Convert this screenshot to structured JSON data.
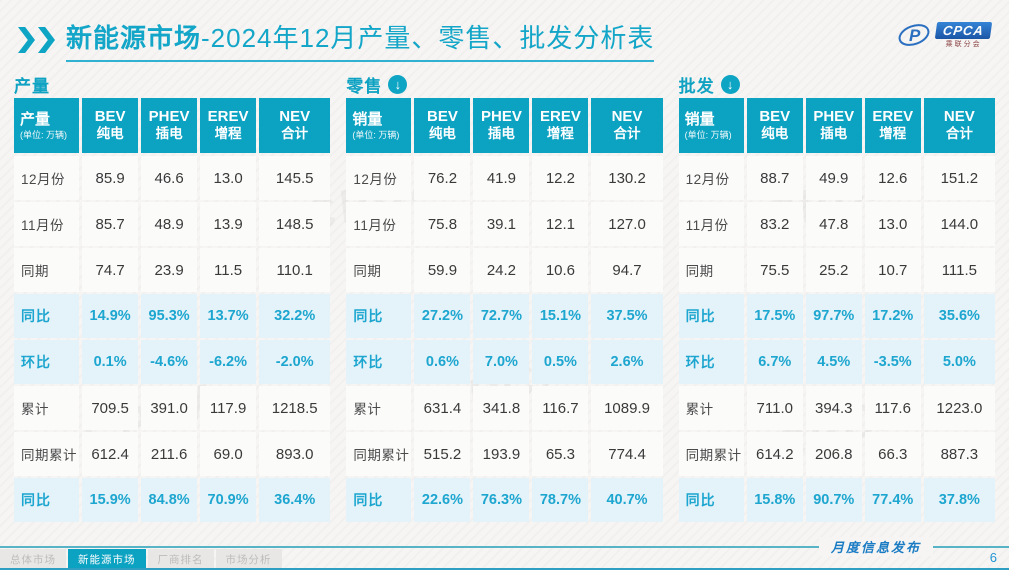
{
  "header": {
    "title_strong": "新能源市场",
    "title_rest": "-2024年12月产量、零售、批发分析表",
    "logo": {
      "name": "CPCA",
      "subtitle": "乘联分会"
    }
  },
  "unit_note": "(单位: 万辆)",
  "columns": [
    {
      "en": "BEV",
      "cn": "纯电"
    },
    {
      "en": "PHEV",
      "cn": "插电"
    },
    {
      "en": "EREV",
      "cn": "增程"
    },
    {
      "en": "NEV",
      "cn": "合计"
    }
  ],
  "tables": [
    {
      "section": "产量",
      "arrow": false,
      "label_header": "产量",
      "rows": [
        {
          "label": "12月份",
          "highlight": false,
          "values": [
            "85.9",
            "46.6",
            "13.0",
            "145.5"
          ]
        },
        {
          "label": "11月份",
          "highlight": false,
          "values": [
            "85.7",
            "48.9",
            "13.9",
            "148.5"
          ]
        },
        {
          "label": "同期",
          "highlight": false,
          "values": [
            "74.7",
            "23.9",
            "11.5",
            "110.1"
          ]
        },
        {
          "label": "同比",
          "highlight": true,
          "values": [
            "14.9%",
            "95.3%",
            "13.7%",
            "32.2%"
          ]
        },
        {
          "label": "环比",
          "highlight": true,
          "values": [
            "0.1%",
            "-4.6%",
            "-6.2%",
            "-2.0%"
          ]
        },
        {
          "label": "累计",
          "highlight": false,
          "values": [
            "709.5",
            "391.0",
            "117.9",
            "1218.5"
          ]
        },
        {
          "label": "同期累计",
          "highlight": false,
          "values": [
            "612.4",
            "211.6",
            "69.0",
            "893.0"
          ]
        },
        {
          "label": "同比",
          "highlight": true,
          "values": [
            "15.9%",
            "84.8%",
            "70.9%",
            "36.4%"
          ]
        }
      ]
    },
    {
      "section": "零售",
      "arrow": true,
      "label_header": "销量",
      "rows": [
        {
          "label": "12月份",
          "highlight": false,
          "values": [
            "76.2",
            "41.9",
            "12.2",
            "130.2"
          ]
        },
        {
          "label": "11月份",
          "highlight": false,
          "values": [
            "75.8",
            "39.1",
            "12.1",
            "127.0"
          ]
        },
        {
          "label": "同期",
          "highlight": false,
          "values": [
            "59.9",
            "24.2",
            "10.6",
            "94.7"
          ]
        },
        {
          "label": "同比",
          "highlight": true,
          "values": [
            "27.2%",
            "72.7%",
            "15.1%",
            "37.5%"
          ]
        },
        {
          "label": "环比",
          "highlight": true,
          "values": [
            "0.6%",
            "7.0%",
            "0.5%",
            "2.6%"
          ]
        },
        {
          "label": "累计",
          "highlight": false,
          "values": [
            "631.4",
            "341.8",
            "116.7",
            "1089.9"
          ]
        },
        {
          "label": "同期累计",
          "highlight": false,
          "values": [
            "515.2",
            "193.9",
            "65.3",
            "774.4"
          ]
        },
        {
          "label": "同比",
          "highlight": true,
          "values": [
            "22.6%",
            "76.3%",
            "78.7%",
            "40.7%"
          ]
        }
      ]
    },
    {
      "section": "批发",
      "arrow": true,
      "label_header": "销量",
      "rows": [
        {
          "label": "12月份",
          "highlight": false,
          "values": [
            "88.7",
            "49.9",
            "12.6",
            "151.2"
          ]
        },
        {
          "label": "11月份",
          "highlight": false,
          "values": [
            "83.2",
            "47.8",
            "13.0",
            "144.0"
          ]
        },
        {
          "label": "同期",
          "highlight": false,
          "values": [
            "75.5",
            "25.2",
            "10.7",
            "111.5"
          ]
        },
        {
          "label": "同比",
          "highlight": true,
          "values": [
            "17.5%",
            "97.7%",
            "17.2%",
            "35.6%"
          ]
        },
        {
          "label": "环比",
          "highlight": true,
          "values": [
            "6.7%",
            "4.5%",
            "-3.5%",
            "5.0%"
          ]
        },
        {
          "label": "累计",
          "highlight": false,
          "values": [
            "711.0",
            "394.3",
            "117.6",
            "1223.0"
          ]
        },
        {
          "label": "同期累计",
          "highlight": false,
          "values": [
            "614.2",
            "206.8",
            "66.3",
            "887.3"
          ]
        },
        {
          "label": "同比",
          "highlight": true,
          "values": [
            "15.8%",
            "90.7%",
            "77.4%",
            "37.8%"
          ]
        }
      ]
    }
  ],
  "footer": {
    "tabs": [
      {
        "label": "总体市场",
        "active": false
      },
      {
        "label": "新能源市场",
        "active": true
      },
      {
        "label": "厂商排名",
        "active": false
      },
      {
        "label": "市场分析",
        "active": false
      }
    ],
    "publish_label": "月度信息发布",
    "page_number": "6"
  },
  "watermark": "CPCA",
  "colors": {
    "teal": "#0ca2c2",
    "highlight_bg": "#e4f2f9",
    "percent_text": "#1da6cf",
    "title": "#14a6c8"
  }
}
